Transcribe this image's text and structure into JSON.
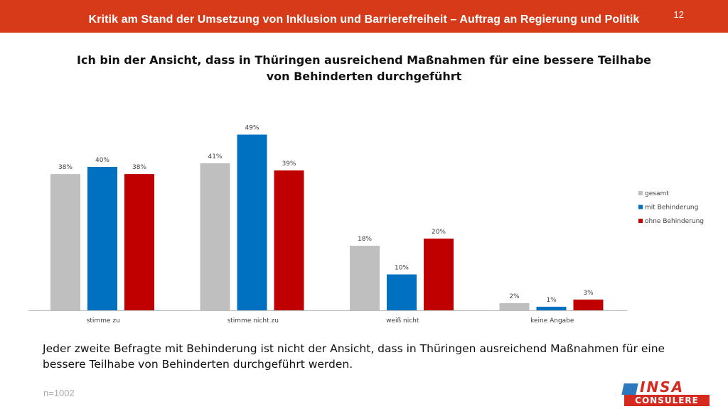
{
  "header": {
    "title": "Kritik am Stand der Umsetzung von Inklusion und Barrierefreiheit – Auftrag an Regierung und Politik",
    "page_number": "12",
    "color": "#d63a18"
  },
  "chart_data": {
    "type": "bar",
    "title": "Ich bin der Ansicht, dass in Thüringen ausreichend Maßnahmen für eine bessere Teilhabe von Behinderten durchgeführt",
    "categories": [
      "stimme zu",
      "stimme nicht zu",
      "weiß nicht",
      "keine Angabe"
    ],
    "series": [
      {
        "name": "gesamt",
        "color": "#bfbfbf",
        "values": [
          38,
          41,
          18,
          2
        ],
        "labels": [
          "38%",
          "41%",
          "18%",
          "2%"
        ]
      },
      {
        "name": "mit Behinderung",
        "color": "#0070c0",
        "values": [
          40,
          49,
          10,
          1
        ],
        "labels": [
          "40%",
          "49%",
          "10%",
          "1%"
        ]
      },
      {
        "name": "ohne Behinderung",
        "color": "#c00000",
        "values": [
          38,
          39,
          20,
          3
        ],
        "labels": [
          "38%",
          "39%",
          "20%",
          "3%"
        ]
      }
    ],
    "unit": "%",
    "ylim": [
      0,
      55
    ],
    "grid": false,
    "legend_position": "right"
  },
  "conclusion": "Jeder zweite Befragte mit Behinderung ist nicht der Ansicht, dass in Thüringen ausreichend Maßnahmen für eine bessere Teilhabe von Behinderten durchgeführt werden.",
  "sample_size": "n=1002",
  "logo": {
    "top": "INSA",
    "bottom": "CONSULERE"
  }
}
